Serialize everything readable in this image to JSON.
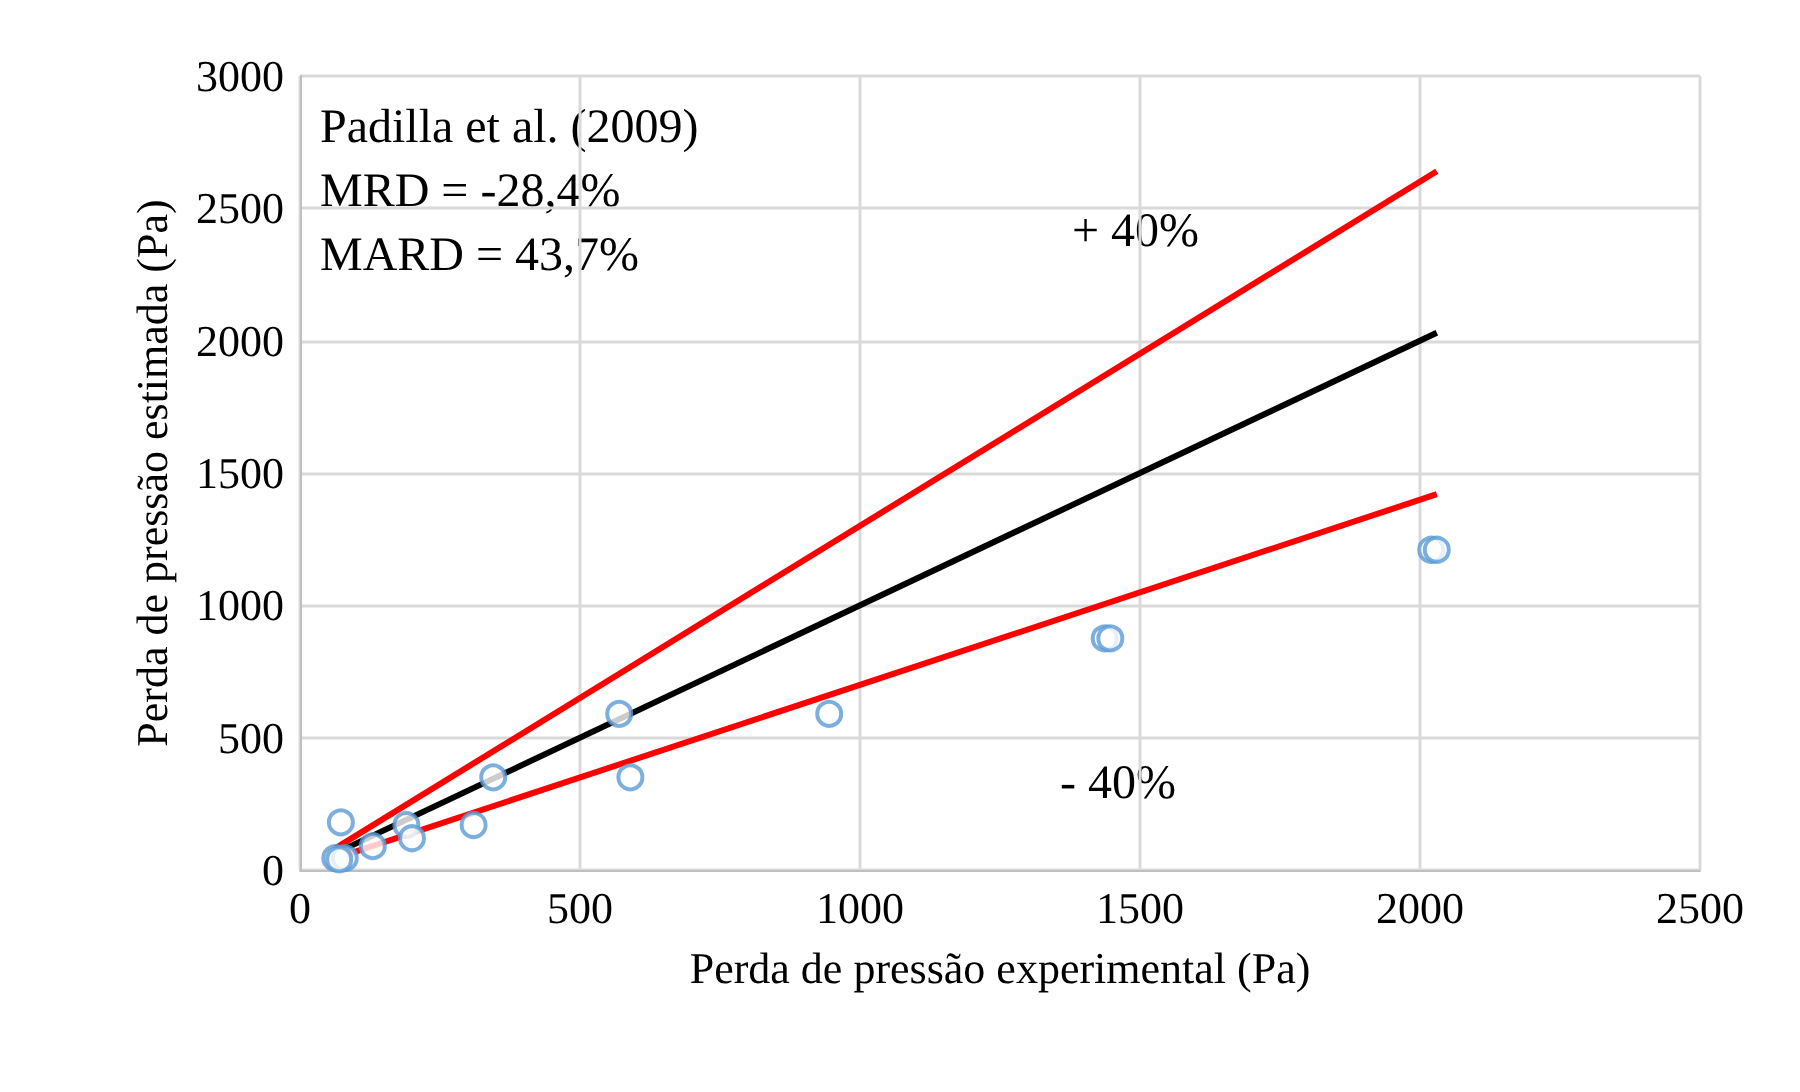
{
  "chart_data": {
    "type": "scatter",
    "xlabel": "Perda de pressão experimental (Pa)",
    "ylabel": "Perda de pressão estimada (Pa)",
    "annotations": [
      "Padilla et al. (2009)\nMRD = -28,4%\nMARD = 43,7%",
      "+ 40%",
      "- 40%"
    ],
    "xlim": [
      0,
      2500
    ],
    "xticks": [
      0,
      500,
      1000,
      1500,
      2000,
      2500
    ],
    "ylim": [
      0,
      3000
    ],
    "yticks": [
      0,
      500,
      1000,
      1500,
      2000,
      2500,
      3000
    ],
    "grid": true,
    "series": [
      {
        "marker": "circle",
        "color": "#5b9bd5",
        "x": [
          73,
          63,
          80,
          70,
          130,
          190,
          200,
          310,
          345,
          570,
          590,
          945,
          1437,
          1447,
          2020,
          2030
        ],
        "values": [
          180,
          45,
          45,
          40,
          90,
          170,
          120,
          170,
          350,
          590,
          350,
          590,
          875,
          875,
          1210,
          1210
        ]
      },
      {
        "type": "line",
        "marker": "none",
        "color": "#000000",
        "x": [
          60,
          2030
        ],
        "values": [
          60,
          2030
        ]
      },
      {
        "type": "line",
        "marker": "none",
        "color": "#ff0000",
        "x": [
          60,
          2030
        ],
        "values": [
          78,
          2640
        ]
      },
      {
        "type": "line",
        "marker": "none",
        "color": "#ff0000",
        "x": [
          60,
          2030
        ],
        "values": [
          42,
          1420
        ]
      }
    ]
  }
}
